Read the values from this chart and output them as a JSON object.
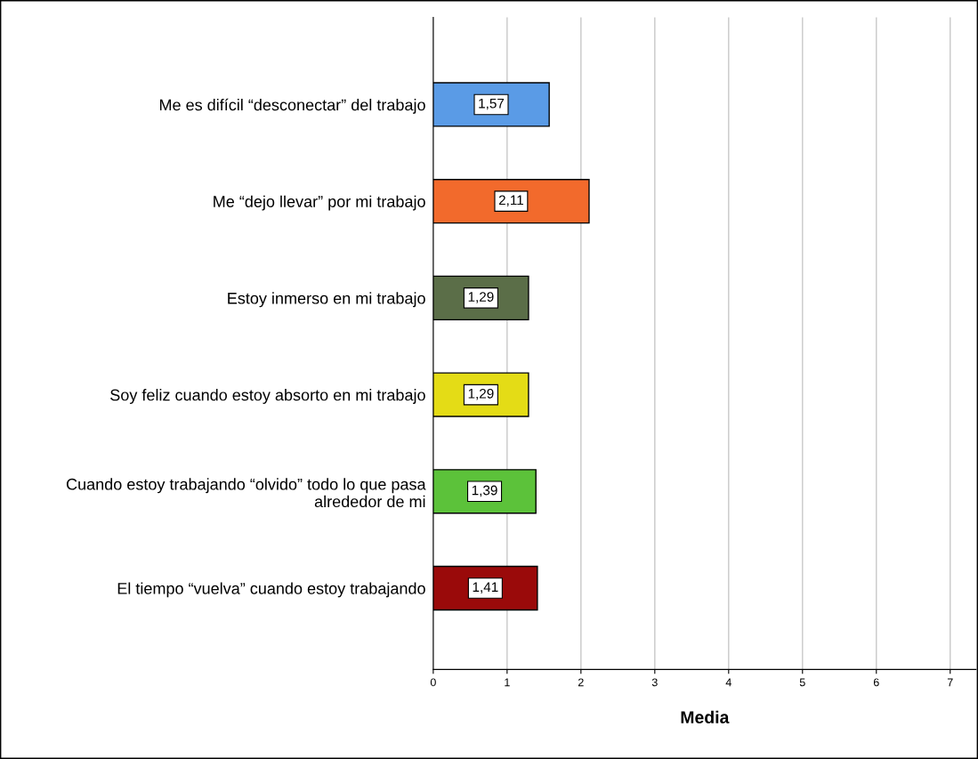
{
  "chart_data": {
    "type": "bar",
    "orientation": "horizontal",
    "xlabel": "Media",
    "categories": [
      "Me es difícil “desconectar” del trabajo",
      "Me “dejo llevar” por mi trabajo",
      "Estoy inmerso en mi trabajo",
      "Soy feliz cuando estoy absorto en mi trabajo",
      "Cuando estoy trabajando “olvido” todo lo que pasa\nalrededor de mi",
      "El tiempo “vuelva” cuando estoy trabajando"
    ],
    "values": [
      1.57,
      2.11,
      1.29,
      1.29,
      1.39,
      1.41
    ],
    "colors": [
      "#5a9be6",
      "#f26a2c",
      "#5b6e48",
      "#e4dc16",
      "#5cc23a",
      "#9a0a0a"
    ],
    "xlim": [
      0,
      7.35
    ],
    "xticks": [
      0,
      1,
      2,
      3,
      4,
      5,
      6,
      7
    ],
    "value_labels": [
      "1,57",
      "2,11",
      "1,29",
      "1,29",
      "1,39",
      "1,41"
    ],
    "grid": "x"
  }
}
